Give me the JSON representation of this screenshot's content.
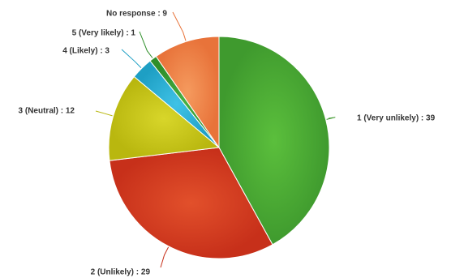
{
  "chart_data": {
    "type": "pie",
    "title": "",
    "legend": "none",
    "slices": [
      {
        "label": "1 (Very unlikely) : 39",
        "category": "1 (Very unlikely)",
        "value": 39,
        "color": "#3f9a2e",
        "highlight": "#5bbf3c"
      },
      {
        "label": "2 (Unlikely) : 29",
        "category": "2 (Unlikely)",
        "value": 29,
        "color": "#c7301a",
        "highlight": "#e2502b"
      },
      {
        "label": "3 (Neutral) : 12",
        "category": "3 (Neutral)",
        "value": 12,
        "color": "#b9b70f",
        "highlight": "#d8d62a"
      },
      {
        "label": "4 (Likely) : 3",
        "category": "4 (Likely)",
        "value": 3,
        "color": "#1e9fc4",
        "highlight": "#3fc2e6"
      },
      {
        "label": "5 (Very likely) : 1",
        "category": "5 (Very likely)",
        "value": 1,
        "color": "#2f8f2a",
        "highlight": "#48b043"
      },
      {
        "label": "No response : 9",
        "category": "No response",
        "value": 9,
        "color": "#e8733a",
        "highlight": "#f59a5e"
      }
    ]
  }
}
